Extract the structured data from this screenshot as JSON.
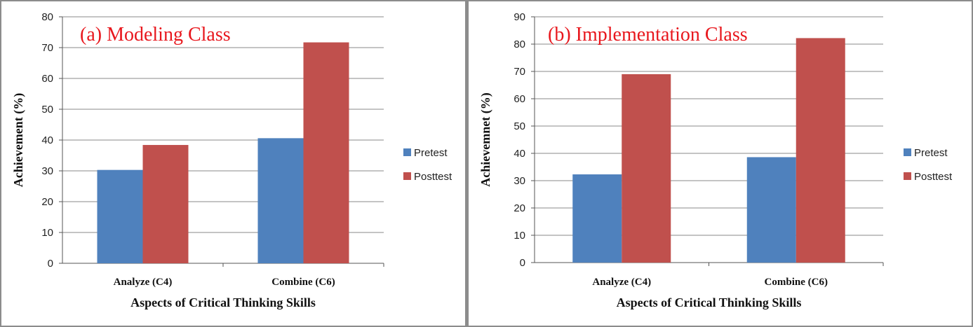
{
  "colors": {
    "pretest": "#4f81bd",
    "posttest": "#c0504d",
    "grid": "#8a8a8a",
    "title": "#e8171d"
  },
  "chart_data": [
    {
      "type": "bar",
      "title": "(a) Modeling Class",
      "xlabel": "Aspects of Critical Thinking  Skills",
      "ylabel": "Achievement (%)",
      "categories": [
        "Analyze (C4)",
        "Combine (C6)"
      ],
      "series": [
        {
          "name": "Pretest",
          "values": [
            30.3,
            40.6
          ]
        },
        {
          "name": "Posttest",
          "values": [
            38.4,
            71.7
          ]
        }
      ],
      "ylim": [
        0,
        80
      ],
      "yticks": [
        0,
        10,
        20,
        30,
        40,
        50,
        60,
        70,
        80
      ],
      "grid": true,
      "legend": "right"
    },
    {
      "type": "bar",
      "title": "(b) Implementation Class",
      "xlabel": "Aspects of Critical Thinking  Skills",
      "ylabel": "Achievemnet (%)",
      "categories": [
        "Analyze (C4)",
        "Combine (C6)"
      ],
      "series": [
        {
          "name": "Pretest",
          "values": [
            32.3,
            38.6
          ]
        },
        {
          "name": "Posttest",
          "values": [
            69.0,
            82.2
          ]
        }
      ],
      "ylim": [
        0,
        90
      ],
      "yticks": [
        0,
        10,
        20,
        30,
        40,
        50,
        60,
        70,
        80,
        90
      ],
      "grid": true,
      "legend": "right"
    }
  ]
}
